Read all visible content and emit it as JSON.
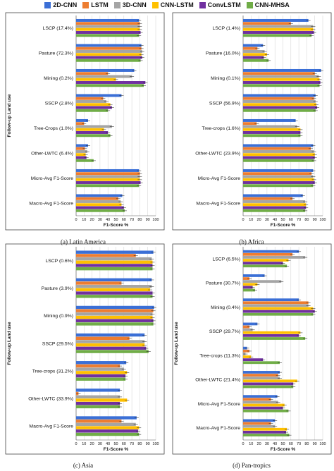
{
  "legend": {
    "items": [
      {
        "name": "2D-CNN",
        "color": "#3b6fd6"
      },
      {
        "name": "LSTM",
        "color": "#ed7d31"
      },
      {
        "name": "3D-CNN",
        "color": "#a5a5a5"
      },
      {
        "name": "CNN-LSTM",
        "color": "#ffc000"
      },
      {
        "name": "ConvLSTM",
        "color": "#7030a0"
      },
      {
        "name": "CNN-MHSA",
        "color": "#70ad47"
      }
    ]
  },
  "chart_data": [
    {
      "type": "bar",
      "orientation": "horizontal",
      "caption": "(a)  Latin America",
      "xlabel": "F1-Score %",
      "ylabel": "Follow-up Land  use",
      "xlim": [
        0,
        100
      ],
      "xticks": [
        "0",
        "10",
        "20",
        "30",
        "40",
        "50",
        "60",
        "70",
        "80",
        "90",
        "100"
      ],
      "categories": [
        "LSCP (17.4%)",
        "Pasture (72.3%)",
        "Mining (0.2%)",
        "SSCP (2.8%)",
        "Tree-Crops (1.0%)",
        "Other-LWTC (6.4%)",
        "Micro-Avg F1-Score",
        "Macro-Avg F1-Score"
      ],
      "series": [
        {
          "name": "2D-CNN",
          "values": [
            79,
            82,
            73,
            57,
            15,
            15,
            79,
            58
          ]
        },
        {
          "name": "LSTM",
          "values": [
            80,
            82,
            40,
            34,
            10,
            11,
            80,
            53
          ]
        },
        {
          "name": "3D-CNN",
          "values": [
            80,
            83,
            70,
            38,
            45,
            14,
            80,
            56
          ]
        },
        {
          "name": "CNN-LSTM",
          "values": [
            80,
            82,
            50,
            43,
            35,
            12,
            80,
            57
          ]
        },
        {
          "name": "ConvLSTM",
          "values": [
            81,
            83,
            87,
            45,
            40,
            13,
            81,
            60
          ]
        },
        {
          "name": "CNN-MHSA",
          "values": [
            79,
            81,
            85,
            40,
            43,
            22,
            79,
            61
          ]
        }
      ]
    },
    {
      "type": "bar",
      "orientation": "horizontal",
      "caption": "(b)  Africa",
      "xlabel": "F1-Score %",
      "ylabel": "",
      "xlim": [
        0,
        100
      ],
      "xticks": [
        "0",
        "10",
        "20",
        "30",
        "40",
        "50",
        "60",
        "70",
        "80",
        "90",
        "100"
      ],
      "categories": [
        "LSCP (1.4%)",
        "Pasture (16.0%)",
        "Mining (0.1%)",
        "SSCP (56.9%)",
        "Tree-crops (1.6%)",
        "Other-LWTC (23.9%)",
        "Micro-Avg F1-Score",
        "Macro-Avg F1-Score"
      ],
      "series": [
        {
          "name": "2D-CNN",
          "values": [
            82,
            25,
            98,
            91,
            66,
            88,
            88,
            75
          ]
        },
        {
          "name": "LSTM",
          "values": [
            60,
            18,
            90,
            89,
            17,
            85,
            86,
            62
          ]
        },
        {
          "name": "3D-CNN",
          "values": [
            88,
            27,
            95,
            91,
            68,
            89,
            88,
            78
          ]
        },
        {
          "name": "CNN-LSTM",
          "values": [
            88,
            30,
            96,
            92,
            72,
            90,
            89,
            79
          ]
        },
        {
          "name": "ConvLSTM",
          "values": [
            89,
            26,
            97,
            93,
            72,
            90,
            90,
            79
          ]
        },
        {
          "name": "CNN-MHSA",
          "values": [
            86,
            32,
            96,
            91,
            72,
            89,
            88,
            78
          ]
        }
      ]
    },
    {
      "type": "bar",
      "orientation": "horizontal",
      "caption": "(c)  Asia",
      "xlabel": "F1-Score %",
      "ylabel": "Follow-up Land  use",
      "xlim": [
        0,
        100
      ],
      "xticks": [
        "0",
        "10",
        "20",
        "30",
        "40",
        "50",
        "60",
        "70",
        "80",
        "90",
        "100"
      ],
      "categories": [
        "LSCP (0.6%)",
        "Pasture (3.9%)",
        "Mining (0.9%)",
        "SSCP (29.5%)",
        "Tree-crops (31.2%)",
        "Other-LWTC (33.9%)",
        "Macro-Avg F1-Score"
      ],
      "series": [
        {
          "name": "2D-CNN",
          "values": [
            97,
            95,
            98,
            86,
            63,
            55,
            76
          ]
        },
        {
          "name": "LSTM",
          "values": [
            75,
            57,
            97,
            67,
            55,
            3,
            57
          ]
        },
        {
          "name": "3D-CNN",
          "values": [
            95,
            95,
            96,
            86,
            60,
            55,
            75
          ]
        },
        {
          "name": "CNN-LSTM",
          "values": [
            96,
            93,
            96,
            86,
            64,
            64,
            79
          ]
        },
        {
          "name": "ConvLSTM",
          "values": [
            96,
            96,
            97,
            88,
            62,
            55,
            78
          ]
        },
        {
          "name": "CNN-MHSA",
          "values": [
            96,
            96,
            97,
            91,
            62,
            55,
            79
          ]
        }
      ]
    },
    {
      "type": "bar",
      "orientation": "horizontal",
      "caption": "(d)  Pan-tropics",
      "xlabel": "F1-Score %",
      "ylabel": "Follow-up Land  use",
      "xlim": [
        0,
        100
      ],
      "xticks": [
        "0",
        "10",
        "20",
        "30",
        "40",
        "50",
        "60",
        "70",
        "80",
        "90",
        "100"
      ],
      "categories": [
        "LSCP (6.5%)",
        "Pasture (30.7%)",
        "Mining (0.4%)",
        "SSCP (29.7%)",
        "Tree-crops (11.3%)",
        "Other-LWTC (21.4%)",
        "Micro-Avg F1-Score",
        "Macro-Avg F1-Score"
      ],
      "series": [
        {
          "name": "2D-CNN",
          "values": [
            70,
            27,
            70,
            18,
            5,
            46,
            43,
            40
          ]
        },
        {
          "name": "LSTM",
          "values": [
            62,
            8,
            82,
            8,
            8,
            44,
            35,
            35
          ]
        },
        {
          "name": "3D-CNN",
          "values": [
            78,
            48,
            82,
            12,
            3,
            46,
            44,
            40
          ]
        },
        {
          "name": "CNN-LSTM",
          "values": [
            57,
            18,
            88,
            72,
            10,
            68,
            52,
            55
          ]
        },
        {
          "name": "ConvLSTM",
          "values": [
            50,
            12,
            90,
            70,
            25,
            63,
            50,
            54
          ]
        },
        {
          "name": "CNN-MHSA",
          "values": [
            55,
            15,
            88,
            78,
            46,
            63,
            57,
            58
          ]
        }
      ]
    }
  ]
}
